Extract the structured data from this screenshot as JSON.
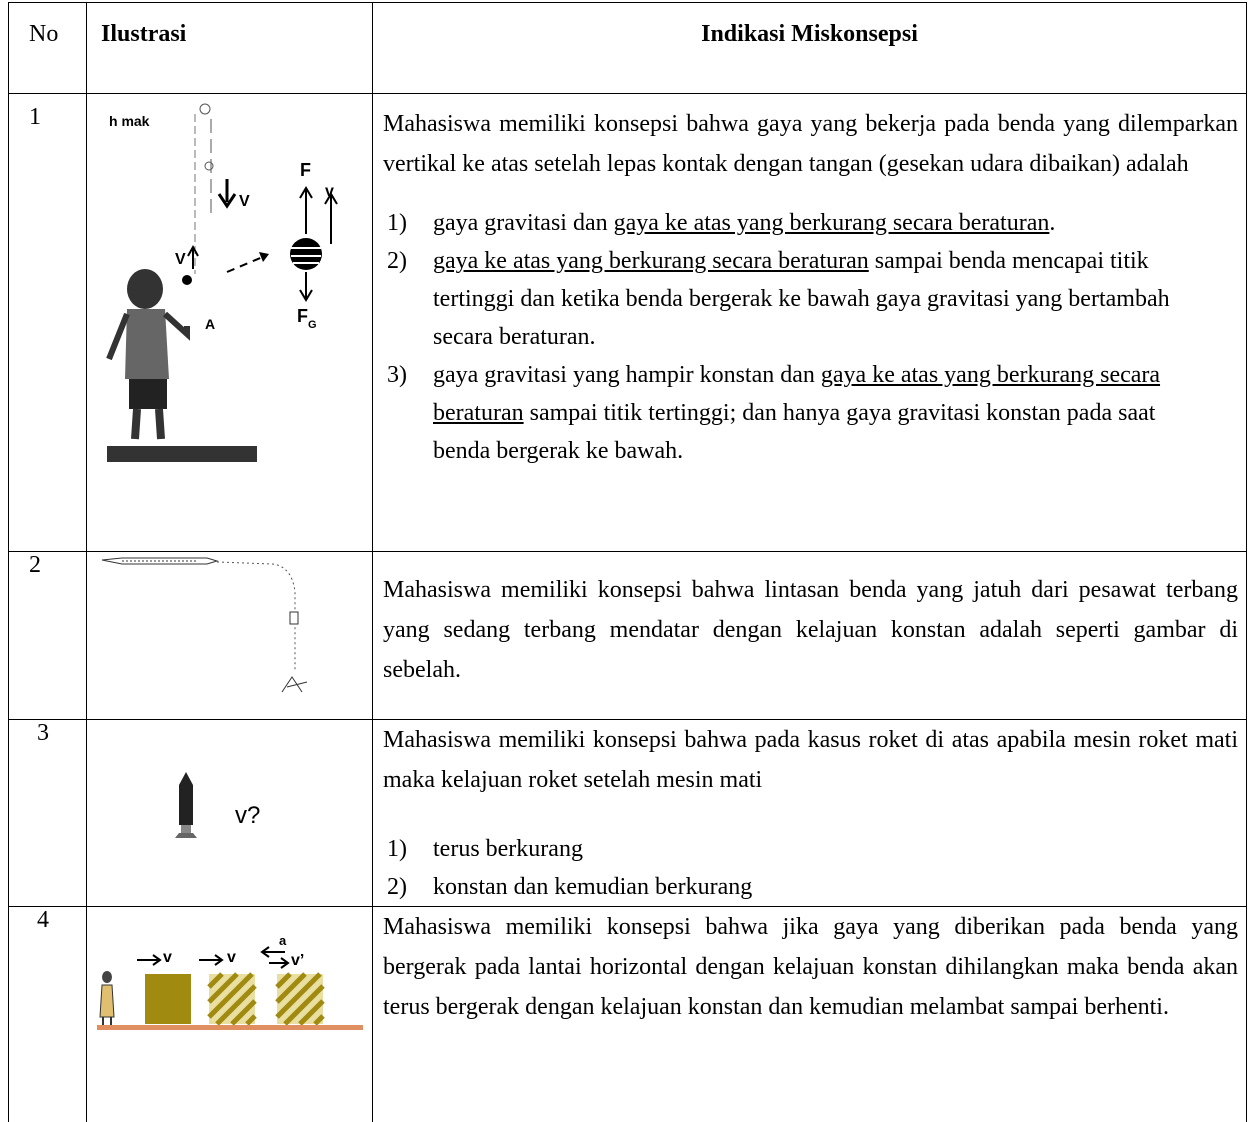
{
  "table": {
    "headers": [
      "No",
      "Ilustrasi",
      "Indikasi Miskonsepsi"
    ],
    "rows": [
      {
        "no": "1",
        "labels": {
          "h_max": "h mak",
          "v_down": "V",
          "v_up": "V",
          "force": "F",
          "velocity": "v",
          "point": "A",
          "gravity": "F",
          "gravity_sub": "G"
        },
        "paragraph": "Mahasiswa memiliki konsepsi bahwa gaya yang bekerja pada benda yang dilemparkan vertikal ke atas setelah lepas kontak dengan tangan (gesekan udara dibaikan) adalah",
        "items": [
          {
            "marker": "1)",
            "segments": [
              {
                "text": "gaya gravitasi dan ",
                "underline": false
              },
              {
                "text": "gaya ke atas yang berkurang secara beraturan",
                "underline": true
              },
              {
                "text": ".",
                "underline": false
              }
            ]
          },
          {
            "marker": "2)",
            "segments": [
              {
                "text": "gaya ke atas yang berkurang secara beraturan",
                "underline": true
              },
              {
                "text": " sampai benda mencapai titik tertinggi dan ketika benda bergerak ke bawah gaya gravitasi yang bertambah secara beraturan.",
                "underline": false
              }
            ]
          },
          {
            "marker": "3)",
            "segments": [
              {
                "text": "gaya gravitasi yang hampir konstan dan ",
                "underline": false
              },
              {
                "text": "gaya ke atas yang berkurang secara beraturan",
                "underline": true
              },
              {
                "text": " sampai titik tertinggi; dan hanya gaya gravitasi konstan pada saat benda bergerak ke bawah.",
                "underline": false
              }
            ]
          }
        ]
      },
      {
        "no": "2",
        "paragraph": "Mahasiswa memiliki konsepsi bahwa lintasan benda yang jatuh dari pesawat terbang yang sedang terbang mendatar dengan kelajuan konstan adalah seperti gambar di sebelah.",
        "items": []
      },
      {
        "no": "3",
        "labels": {
          "velocity": "v?"
        },
        "paragraph": "Mahasiswa memiliki konsepsi bahwa pada kasus roket di atas apabila mesin roket mati maka kelajuan roket setelah mesin mati",
        "items": [
          {
            "marker": "1)",
            "segments": [
              {
                "text": "terus berkurang",
                "underline": false
              }
            ]
          },
          {
            "marker": "2)",
            "segments": [
              {
                "text": "konstan dan kemudian berkurang",
                "underline": false
              }
            ]
          }
        ]
      },
      {
        "no": "4",
        "labels": {
          "v1": "v",
          "v2": "v",
          "accel": "a",
          "v3": "v’"
        },
        "paragraph": "Mahasiswa memiliki konsepsi bahwa jika gaya yang diberikan pada benda yang bergerak pada lantai horizontal dengan kelajuan konstan dihilangkan maka benda akan terus bergerak dengan kelajuan konstan dan kemudian melambat sampai berhenti.",
        "items": []
      }
    ]
  }
}
